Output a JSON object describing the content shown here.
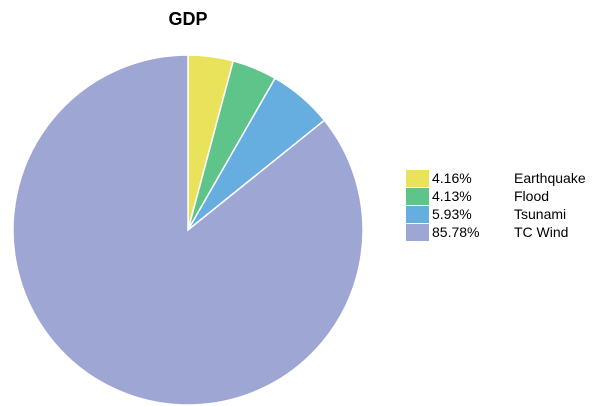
{
  "chart_data": {
    "type": "pie",
    "title": "GDP",
    "series": [
      {
        "name": "Earthquake",
        "value": 4.16,
        "label": "4.16%",
        "color": "#e8e35a"
      },
      {
        "name": "Flood",
        "value": 4.13,
        "label": "4.13%",
        "color": "#5fc48a"
      },
      {
        "name": "Tsunami",
        "value": 5.93,
        "label": "5.93%",
        "color": "#67aee0"
      },
      {
        "name": "TC Wind",
        "value": 85.78,
        "label": "85.78%",
        "color": "#9ea6d3"
      }
    ],
    "start_angle": "top (12 o'clock)",
    "direction": "clockwise",
    "legend_position": "right"
  }
}
